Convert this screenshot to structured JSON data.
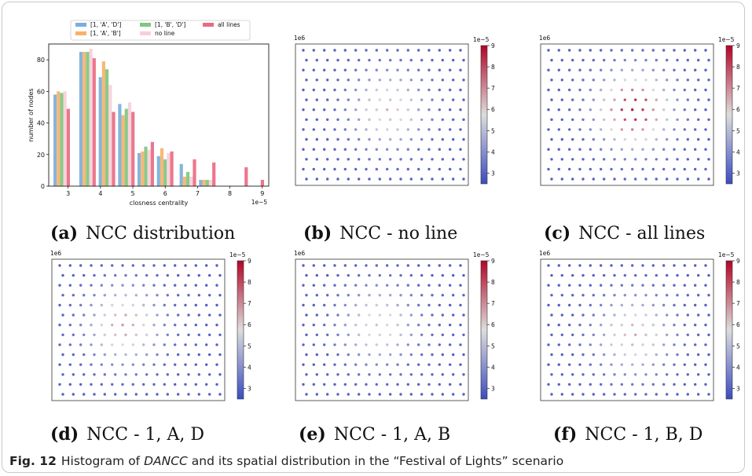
{
  "colors": {
    "series": [
      "#7bafd8",
      "#f6b26b",
      "#7fc77f",
      "#f8cfd8",
      "#e96b83"
    ],
    "dot_low": "#3b4cc0",
    "dot_mid": "#dddddd",
    "dot_high": "#b40426"
  },
  "subfigures": [
    {
      "label": "(a)",
      "caption": "NCC distribution"
    },
    {
      "label": "(b)",
      "caption": "NCC - no line"
    },
    {
      "label": "(c)",
      "caption": "NCC - all lines"
    },
    {
      "label": "(d)",
      "caption": "NCC - 1, A, D"
    },
    {
      "label": "(e)",
      "caption": "NCC - 1, A, B"
    },
    {
      "label": "(f)",
      "caption": "NCC - 1, B, D"
    }
  ],
  "caption": {
    "fig_number": "Fig. 12",
    "text_before": "Histogram of",
    "text_em": "DANCC",
    "text_after": "and its spatial distribution in the “Festival of Lights” scenario"
  },
  "chart_data": [
    {
      "type": "bar",
      "xlabel": "closness centrality",
      "ylabel": "number of nodes",
      "x_offset_label": "1e−5",
      "x_ticks": [
        "3",
        "4",
        "5",
        "6",
        "7",
        "8",
        "9"
      ],
      "y_ticks": [
        "0",
        "20",
        "40",
        "60",
        "80"
      ],
      "xlim": [
        2.4,
        9.2
      ],
      "ylim": [
        0,
        90
      ],
      "bin_centers": [
        2.8,
        3.6,
        4.2,
        4.8,
        5.4,
        6.0,
        6.7,
        7.3,
        8.3,
        8.8
      ],
      "series": [
        {
          "name": "[1, 'A', 'D']",
          "values": [
            58,
            85,
            69,
            52,
            21,
            19,
            14,
            4,
            0,
            0
          ]
        },
        {
          "name": "[1, 'A', 'B']",
          "values": [
            60,
            85,
            79,
            45,
            22,
            24,
            6,
            4,
            0,
            0
          ]
        },
        {
          "name": "[1, 'B', 'D']",
          "values": [
            59,
            85,
            74,
            49,
            25,
            17,
            9,
            4,
            0,
            0
          ]
        },
        {
          "name": "no line",
          "values": [
            60,
            87,
            64,
            53,
            23,
            21,
            6,
            4,
            0,
            0
          ]
        },
        {
          "name": "all lines",
          "values": [
            49,
            81,
            47,
            47,
            28,
            22,
            17,
            15,
            12,
            4
          ]
        }
      ],
      "legend": "top-center, outside"
    },
    {
      "type": "scatter",
      "panel": "(b)",
      "corner_label": "1e6",
      "colorbar_offset_label": "1e−5",
      "colorbar_ticks": [
        "3",
        "4",
        "5",
        "6",
        "7",
        "8",
        "9"
      ],
      "colorbar_range": [
        2.5,
        9
      ],
      "grid": "16 x 14 nodes",
      "peak_value": 6.4,
      "peak_center": [
        8,
        6
      ]
    },
    {
      "type": "scatter",
      "panel": "(c)",
      "corner_label": "1e6",
      "colorbar_offset_label": "1e−5",
      "colorbar_ticks": [
        "3",
        "4",
        "5",
        "6",
        "7",
        "8",
        "9"
      ],
      "colorbar_range": [
        2.5,
        9
      ],
      "grid": "16 x 14 nodes",
      "peak_value": 8.7,
      "peak_center": [
        8,
        6
      ]
    },
    {
      "type": "scatter",
      "panel": "(d)",
      "corner_label": "1e6",
      "colorbar_offset_label": "1e−5",
      "colorbar_ticks": [
        "3",
        "4",
        "5",
        "6",
        "7",
        "8",
        "9"
      ],
      "colorbar_range": [
        2.5,
        9
      ],
      "grid": "16 x 14 nodes",
      "peak_value": 6.8,
      "peak_center": [
        6,
        6
      ]
    },
    {
      "type": "scatter",
      "panel": "(e)",
      "corner_label": "1e6",
      "colorbar_offset_label": "1e−5",
      "colorbar_ticks": [
        "3",
        "4",
        "5",
        "6",
        "7",
        "8",
        "9"
      ],
      "colorbar_range": [
        2.5,
        9
      ],
      "grid": "16 x 14 nodes",
      "peak_value": 6.2,
      "peak_center": [
        7,
        6
      ]
    },
    {
      "type": "scatter",
      "panel": "(f)",
      "corner_label": "1e6",
      "colorbar_offset_label": "1e−5",
      "colorbar_ticks": [
        "3",
        "4",
        "5",
        "6",
        "7",
        "8",
        "9"
      ],
      "colorbar_range": [
        2.5,
        9
      ],
      "grid": "16 x 14 nodes",
      "peak_value": 6.6,
      "peak_center": [
        8,
        7
      ]
    }
  ]
}
